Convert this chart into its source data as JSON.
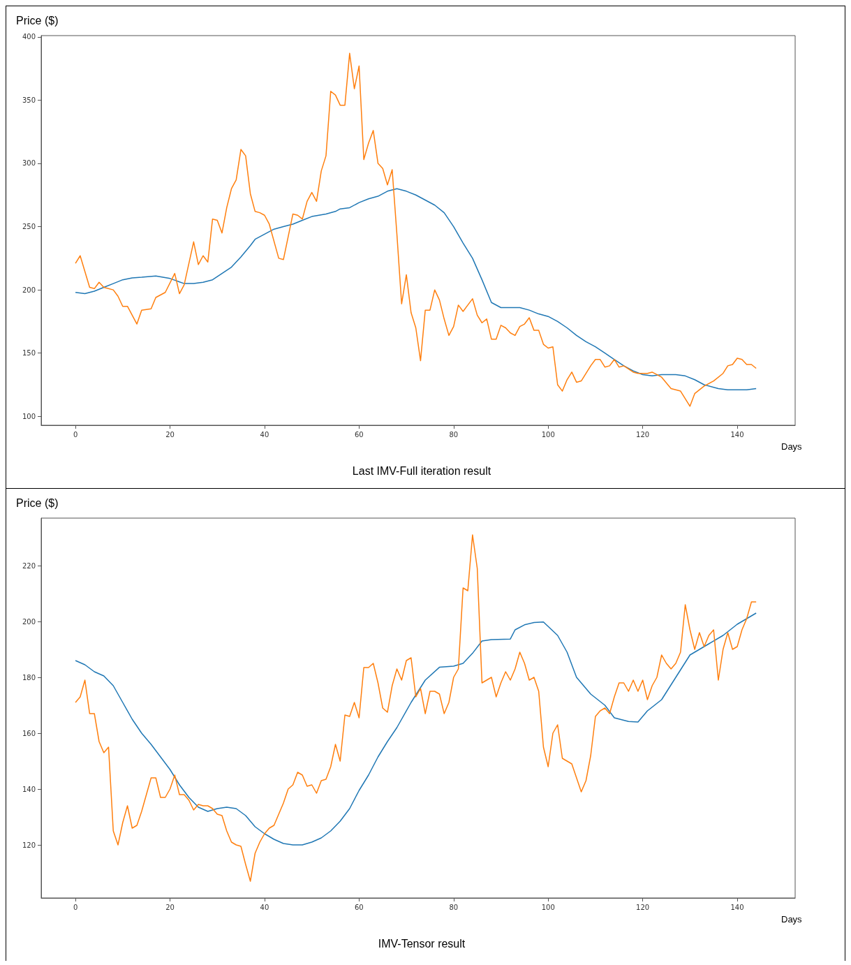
{
  "chart_data": [
    {
      "type": "line",
      "title": "Last IMV-Full iteration result",
      "xlabel": "Days",
      "ylabel": "Price ($)",
      "xlim": [
        -7.25,
        152.25
      ],
      "xticks": [
        0,
        20,
        40,
        60,
        80,
        100,
        120,
        140
      ],
      "ylim": [
        93,
        401
      ],
      "yticks": [
        100,
        150,
        200,
        250,
        300,
        350,
        400
      ],
      "marker": "none",
      "series": [
        {
          "color": "#1f77b4",
          "x": [
            0,
            2,
            4,
            6,
            8,
            10,
            12,
            14,
            17,
            20,
            23,
            25,
            27,
            29,
            31,
            33,
            35,
            37,
            38,
            40,
            42,
            44,
            46,
            48,
            50,
            53,
            55,
            56,
            58,
            60,
            62,
            64,
            66,
            68,
            70,
            72,
            74,
            76,
            78,
            80,
            82,
            84,
            86,
            88,
            90,
            92,
            94,
            96,
            98,
            100,
            102,
            104,
            106,
            108,
            110,
            112,
            114,
            116,
            118,
            120,
            122,
            124,
            127,
            129,
            131,
            133,
            136,
            138,
            140,
            142,
            144
          ],
          "values": [
            198,
            197,
            199,
            202,
            205,
            208,
            209.5,
            210,
            211,
            209,
            205,
            205,
            206,
            208,
            213,
            218,
            226,
            235,
            240,
            244,
            248,
            250,
            252,
            255,
            258,
            260,
            262,
            264,
            265,
            269,
            272,
            274,
            278,
            280,
            278,
            275,
            271,
            267,
            261,
            250,
            237,
            225,
            208,
            190,
            186,
            186,
            186,
            184,
            181,
            179,
            175,
            170,
            164,
            159,
            155,
            150,
            145,
            140,
            136,
            133,
            132,
            133,
            133,
            132,
            129,
            125,
            122,
            121,
            121,
            121,
            122
          ]
        },
        {
          "color": "#ff7f0e",
          "x": [
            0,
            1,
            3,
            4,
            5,
            6,
            8,
            9,
            10,
            11,
            13,
            14,
            16,
            17,
            19,
            21,
            22,
            23,
            25,
            26,
            27,
            28,
            29,
            30,
            31,
            32,
            33,
            34,
            35,
            36,
            37,
            38,
            39,
            40,
            41,
            43,
            44,
            46,
            47,
            48,
            49,
            50,
            51,
            52,
            53,
            54,
            55,
            56,
            57,
            58,
            59,
            60,
            61,
            62,
            63,
            64,
            65,
            66,
            67,
            68,
            69,
            70,
            71,
            72,
            73,
            74,
            75,
            76,
            77,
            78,
            79,
            80,
            81,
            82,
            83,
            84,
            85,
            86,
            87,
            88,
            89,
            90,
            91,
            92,
            93,
            94,
            95,
            96,
            97,
            98,
            99,
            100,
            101,
            102,
            103,
            104,
            105,
            106,
            107,
            109,
            110,
            111,
            112,
            113,
            114,
            115,
            116,
            118,
            119,
            120,
            121,
            122,
            124,
            126,
            128,
            130,
            131,
            133,
            135,
            137,
            138,
            139,
            140,
            141,
            142,
            143,
            144
          ],
          "values": [
            221,
            227,
            202,
            201,
            206,
            202,
            200,
            195,
            187,
            187,
            173,
            184,
            185,
            194,
            198,
            213,
            197,
            204,
            238,
            220,
            227,
            222,
            256,
            255,
            245,
            265,
            280,
            287,
            311,
            306,
            276,
            262,
            261,
            259,
            252,
            225,
            224,
            260,
            259,
            256,
            270,
            277,
            270,
            294,
            306,
            357,
            354,
            346,
            346,
            387,
            359,
            377,
            303,
            316,
            326,
            300,
            296,
            283,
            295,
            244,
            189,
            212,
            182,
            170,
            144,
            184,
            184,
            200,
            192,
            177,
            164,
            171,
            188,
            183,
            188,
            193,
            180,
            174,
            177,
            161,
            161,
            172,
            170,
            166,
            164,
            171,
            173,
            178,
            168,
            168,
            157,
            154,
            155,
            125,
            120,
            129,
            135,
            127,
            128,
            140,
            145,
            145,
            139,
            140,
            145,
            139,
            140,
            135,
            134,
            134,
            134,
            135,
            131,
            122,
            120,
            108,
            118,
            124,
            128,
            134,
            140,
            141,
            146,
            145,
            141,
            141,
            138
          ]
        }
      ]
    },
    {
      "type": "line",
      "title": "IMV-Tensor result",
      "xlabel": "Days",
      "ylabel": "Price ($)",
      "xlim": [
        -7.25,
        152.25
      ],
      "xticks": [
        0,
        20,
        40,
        60,
        80,
        100,
        120,
        140
      ],
      "ylim": [
        101,
        237
      ],
      "yticks": [
        120,
        140,
        160,
        180,
        200,
        220
      ],
      "marker": "none",
      "series": [
        {
          "color": "#1f77b4",
          "x": [
            0,
            2,
            4,
            6,
            8,
            10,
            12,
            14,
            16,
            18,
            20,
            22,
            24,
            26,
            28,
            30,
            32,
            34,
            36,
            38,
            40,
            42,
            44,
            46,
            48,
            50,
            52,
            54,
            56,
            58,
            60,
            62,
            64,
            66,
            68,
            71,
            74,
            77,
            80,
            82,
            84,
            86,
            88,
            92,
            93,
            95,
            97,
            99,
            102,
            104,
            106,
            109,
            112,
            114,
            117,
            119,
            121,
            124,
            127,
            130,
            134,
            137,
            140,
            144
          ],
          "values": [
            186,
            184.5,
            182,
            180.5,
            177,
            171,
            165,
            160,
            156,
            151.5,
            147,
            141.5,
            137,
            133.5,
            132,
            133,
            133.5,
            133,
            130.5,
            126.5,
            124,
            122,
            120.5,
            120,
            120,
            121,
            122.5,
            125,
            128.5,
            133,
            139.5,
            145,
            151.5,
            157,
            162,
            171,
            179,
            183.6,
            184,
            185,
            188.6,
            193,
            193.5,
            193.7,
            197,
            198.8,
            199.6,
            199.8,
            195,
            189,
            180,
            174,
            170,
            165.5,
            164.2,
            164,
            168,
            172,
            180,
            188,
            192,
            195,
            199,
            203
          ]
        },
        {
          "color": "#ff7f0e",
          "x": [
            0,
            1,
            2,
            3,
            4,
            5,
            6,
            7,
            8,
            9,
            10,
            11,
            12,
            13,
            14,
            15,
            16,
            17,
            18,
            19,
            20,
            21,
            22,
            23,
            24,
            25,
            26,
            27,
            28,
            29,
            30,
            31,
            32,
            33,
            34,
            35,
            36,
            37,
            38,
            39,
            40,
            41,
            42,
            43,
            44,
            45,
            46,
            47,
            48,
            49,
            50,
            51,
            52,
            53,
            54,
            55,
            56,
            57,
            58,
            59,
            60,
            61,
            62,
            63,
            64,
            65,
            66,
            67,
            68,
            69,
            70,
            71,
            72,
            73,
            74,
            75,
            76,
            77,
            78,
            79,
            80,
            81,
            82,
            83,
            84,
            85,
            86,
            87,
            88,
            89,
            90,
            91,
            92,
            93,
            94,
            95,
            96,
            97,
            98,
            99,
            100,
            101,
            102,
            103,
            104,
            105,
            106,
            107,
            108,
            109,
            110,
            111,
            112,
            113,
            114,
            115,
            116,
            117,
            118,
            119,
            120,
            121,
            122,
            123,
            124,
            125,
            126,
            127,
            128,
            129,
            130,
            131,
            132,
            133,
            134,
            135,
            136,
            137,
            138,
            139,
            140,
            141,
            142,
            143,
            144
          ],
          "values": [
            171,
            173,
            179,
            167,
            167,
            157,
            153,
            155,
            125,
            120,
            128,
            134,
            126,
            127,
            132,
            138,
            144,
            144,
            137,
            137,
            140,
            145,
            138,
            138,
            136,
            132.5,
            134.5,
            134,
            134,
            133,
            131,
            130.5,
            125,
            121,
            120,
            119.5,
            113,
            107,
            117,
            121,
            124,
            126,
            127,
            131,
            135,
            140,
            141.5,
            146,
            145,
            141,
            141.5,
            138.5,
            143,
            143.5,
            148,
            156,
            150,
            166.5,
            166,
            171,
            165.5,
            183.5,
            183.5,
            185,
            178,
            169,
            167.5,
            177,
            183,
            179,
            186,
            187,
            173,
            176,
            167,
            175,
            175,
            174,
            167,
            171,
            180,
            183,
            212,
            211,
            231,
            219,
            178,
            179,
            180,
            173,
            178,
            182,
            179,
            183,
            189,
            185,
            179,
            180,
            175,
            155,
            148,
            160,
            163,
            151,
            150,
            149,
            144,
            139,
            143,
            152,
            166,
            168,
            169,
            167,
            173,
            178,
            178,
            175,
            179,
            175,
            179,
            172,
            177,
            180,
            188,
            185,
            183,
            185,
            189,
            206,
            197,
            190,
            196,
            191,
            195,
            197,
            179,
            190,
            196,
            190,
            191,
            197,
            201,
            207,
            207
          ]
        }
      ]
    }
  ]
}
